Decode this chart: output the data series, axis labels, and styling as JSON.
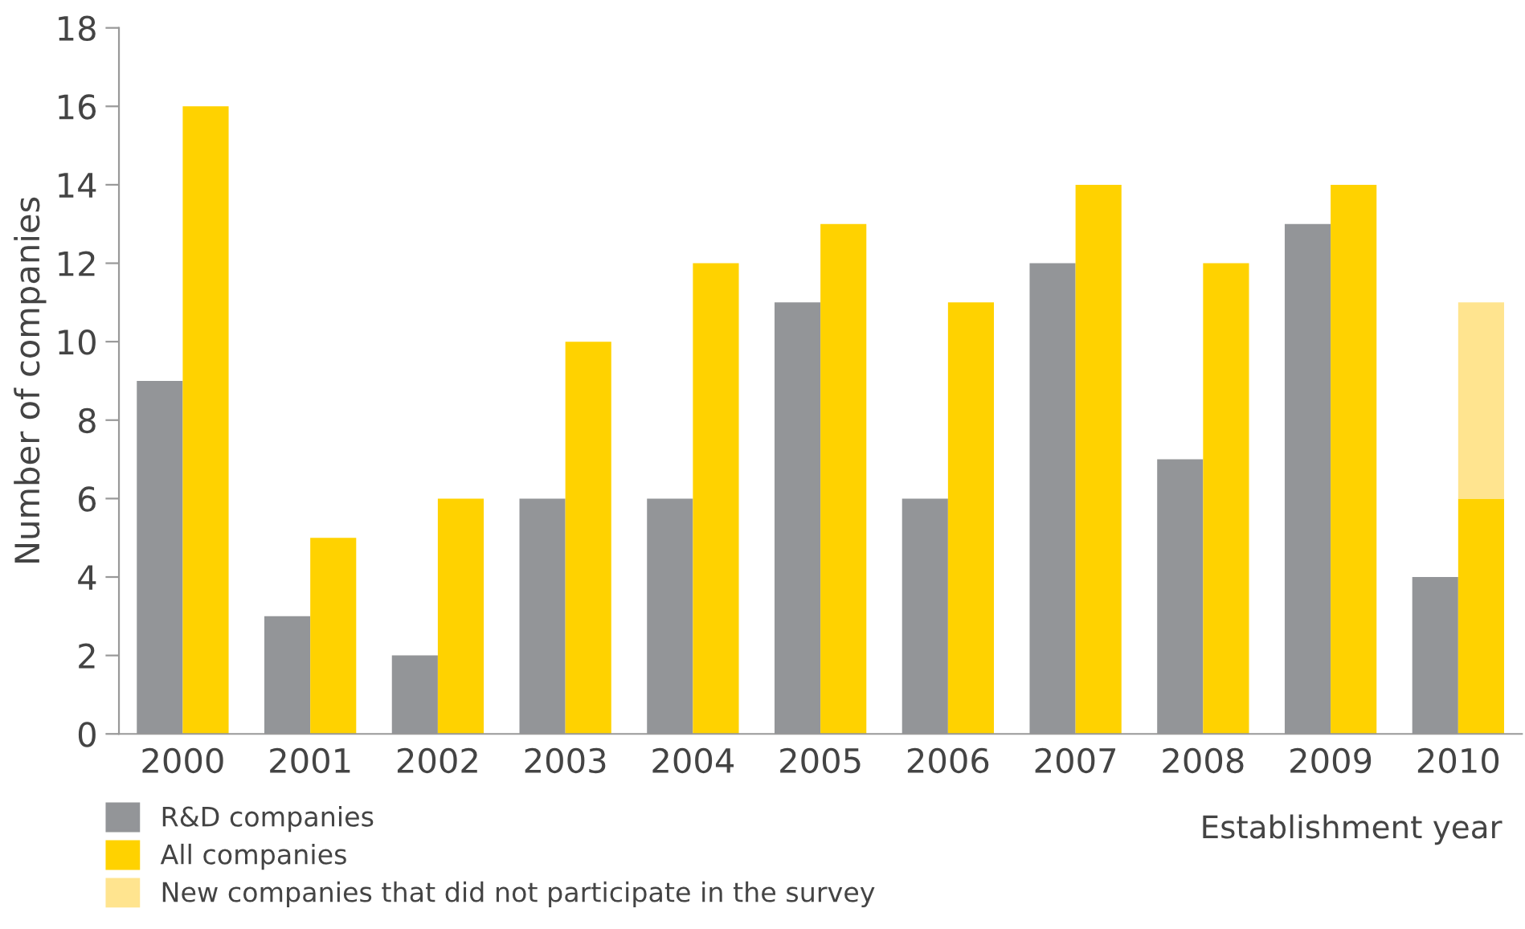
{
  "chart_data": {
    "type": "bar",
    "xlabel": "Establishment year",
    "ylabel": "Number of companies",
    "categories": [
      "2000",
      "2001",
      "2002",
      "2003",
      "2004",
      "2005",
      "2006",
      "2007",
      "2008",
      "2009",
      "2010"
    ],
    "series": [
      {
        "name": "R&D companies",
        "color": "#939598",
        "values": [
          9,
          3,
          2,
          6,
          6,
          11,
          6,
          12,
          7,
          13,
          4
        ]
      },
      {
        "name": "All companies",
        "color": "#ffd200",
        "values": [
          16,
          5,
          6,
          10,
          12,
          13,
          11,
          14,
          12,
          14,
          6
        ]
      },
      {
        "name": "New companies that did not participate in the survey",
        "color": "#ffe48f",
        "values": [
          null,
          null,
          null,
          null,
          null,
          null,
          null,
          null,
          null,
          null,
          5
        ],
        "base": [
          null,
          null,
          null,
          null,
          null,
          null,
          null,
          null,
          null,
          null,
          6
        ]
      }
    ],
    "ylim": [
      0,
      18
    ],
    "yticks": [
      0,
      2,
      4,
      6,
      8,
      10,
      12,
      14,
      16,
      18
    ],
    "grid": false,
    "legend": "bottom left"
  }
}
